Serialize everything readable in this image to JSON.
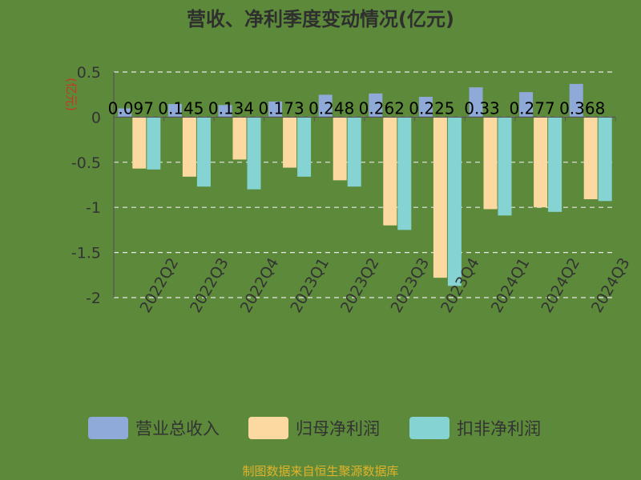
{
  "colors": {
    "background": "#5c8a3a",
    "revenue": "#8fa9d9",
    "parent_net_profit": "#fbd9a0",
    "non_recurring_net_profit": "#86d3d3"
  },
  "footer": "制图数据来自恒生聚源数据库",
  "chart_data": {
    "type": "bar",
    "title": "营收、净利季度变动情况(亿元)",
    "unit_label": "(亿元)",
    "categories": [
      "2022Q2",
      "2022Q3",
      "2022Q4",
      "2023Q1",
      "2023Q2",
      "2023Q3",
      "2023Q4",
      "2024Q1",
      "2024Q2",
      "2024Q3"
    ],
    "ylim": [
      -2,
      0.5
    ],
    "yticks": [
      0.5,
      0,
      -0.5,
      -1,
      -1.5,
      -2
    ],
    "ytick_labels": [
      "0.5",
      "0",
      "-0.5",
      "-1",
      "-1.5",
      "-2"
    ],
    "grid": true,
    "legend_position": "bottom",
    "series": [
      {
        "name": "营业总收入",
        "values": [
          0.097,
          0.145,
          0.134,
          0.173,
          0.248,
          0.262,
          0.225,
          0.33,
          0.277,
          0.368
        ],
        "labels": [
          "0.097",
          "0.145",
          "0.134",
          "0.173",
          "0.248",
          "0.262",
          "0.225",
          "0.33",
          "0.277",
          "0.368"
        ]
      },
      {
        "name": "归母净利润",
        "values": [
          -0.57,
          -0.66,
          -0.47,
          -0.56,
          -0.7,
          -1.2,
          -1.78,
          -1.02,
          -1.0,
          -0.91
        ]
      },
      {
        "name": "扣非净利润",
        "values": [
          -0.58,
          -0.77,
          -0.8,
          -0.66,
          -0.77,
          -1.25,
          -1.87,
          -1.09,
          -1.05,
          -0.93
        ]
      }
    ]
  }
}
